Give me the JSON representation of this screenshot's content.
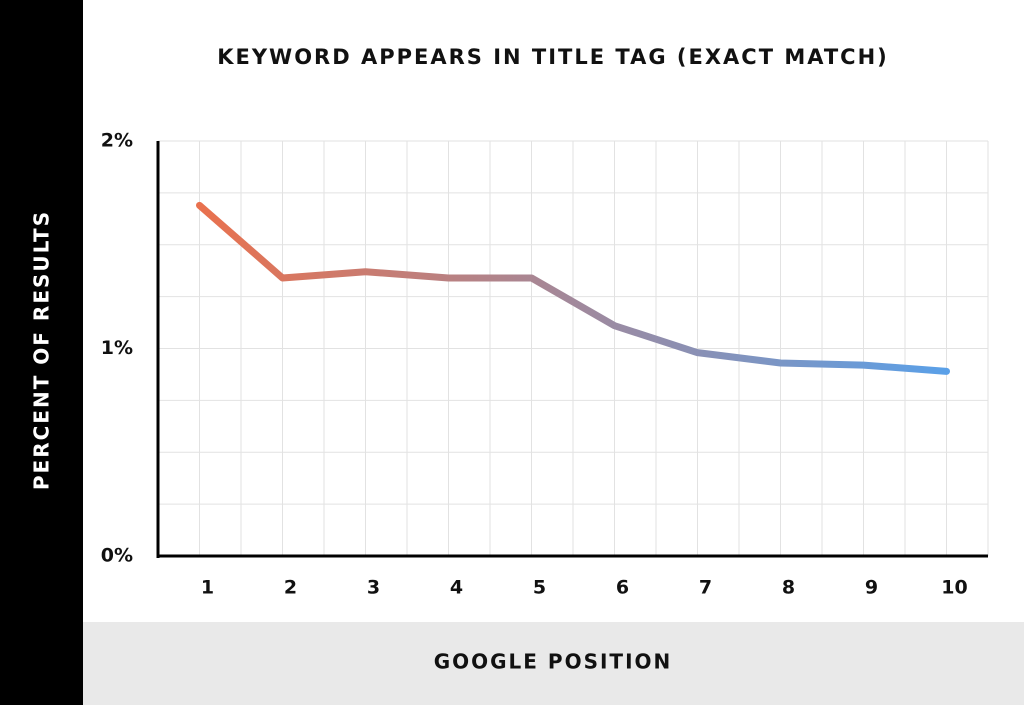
{
  "chart_data": {
    "type": "line",
    "title": "KEYWORD APPEARS IN TITLE TAG (EXACT MATCH)",
    "x_label": "GOOGLE POSITION",
    "y_label": "PERCENT OF RESULTS",
    "x": [
      1,
      2,
      3,
      4,
      5,
      6,
      7,
      8,
      9,
      10
    ],
    "values": [
      1.69,
      1.34,
      1.37,
      1.34,
      1.34,
      1.11,
      0.98,
      0.93,
      0.92,
      0.89
    ],
    "gradient": [
      "#e9714e",
      "#5aa0e8"
    ],
    "xlim": [
      0.5,
      10.5
    ],
    "xticks": [
      1,
      2,
      3,
      4,
      5,
      6,
      7,
      8,
      9,
      10
    ],
    "ylim": [
      0,
      2
    ],
    "yticks": [
      {
        "value": 0,
        "label": "0%"
      },
      {
        "value": 1,
        "label": "1%"
      },
      {
        "value": 2,
        "label": "2%"
      }
    ],
    "grid": true
  }
}
